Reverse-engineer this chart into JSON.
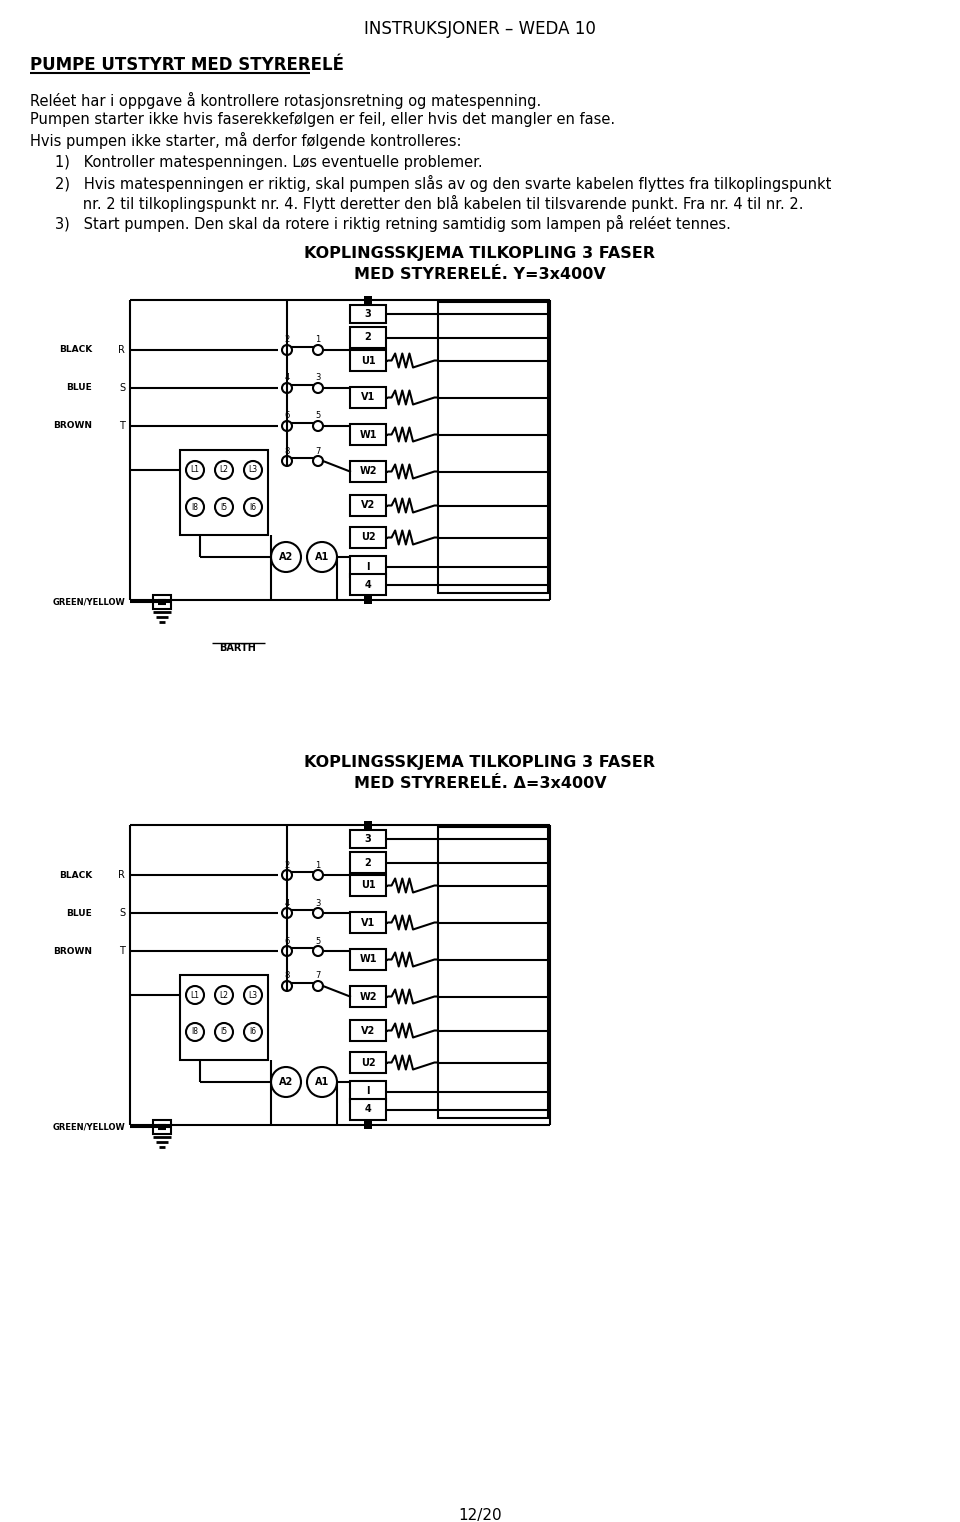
{
  "title": "INSTRUKSJONER – WEDA 10",
  "section_title": "PUMPE UTSTYRT MED STYRERELÉ",
  "para1": "Reléet har i oppgave å kontrollere rotasjonsretning og matespenning.",
  "para2": "Pumpen starter ikke hvis faserekkefølgen er feil, eller hvis det mangler en fase.",
  "para3": "Hvis pumpen ikke starter, må derfor følgende kontrolleres:",
  "item1": "1)   Kontroller matespenningen. Løs eventuelle problemer.",
  "item2a": "2)   Hvis matespenningen er riktig, skal pumpen slås av og den svarte kabelen flyttes fra tilkoplingspunkt",
  "item2b": "      nr. 2 til tilkoplingspunkt nr. 4. Flytt deretter den blå kabelen til tilsvarende punkt. Fra nr. 4 til nr. 2.",
  "item3": "3)   Start pumpen. Den skal da rotere i riktig retning samtidig som lampen på reléet tennes.",
  "diag1_title1": "KOPLINGSSKJEMA TILKOPLING 3 FASER",
  "diag1_title2": "MED STYRERELÉ. Y=3x400V",
  "diag2_title1": "KOPLINGSSKJEMA TILKOPLING 3 FASER",
  "diag2_title2": "MED STYRERELÉ. Δ=3x400V",
  "page_num": "12/20",
  "bg_color": "#ffffff",
  "text_color": "#000000"
}
